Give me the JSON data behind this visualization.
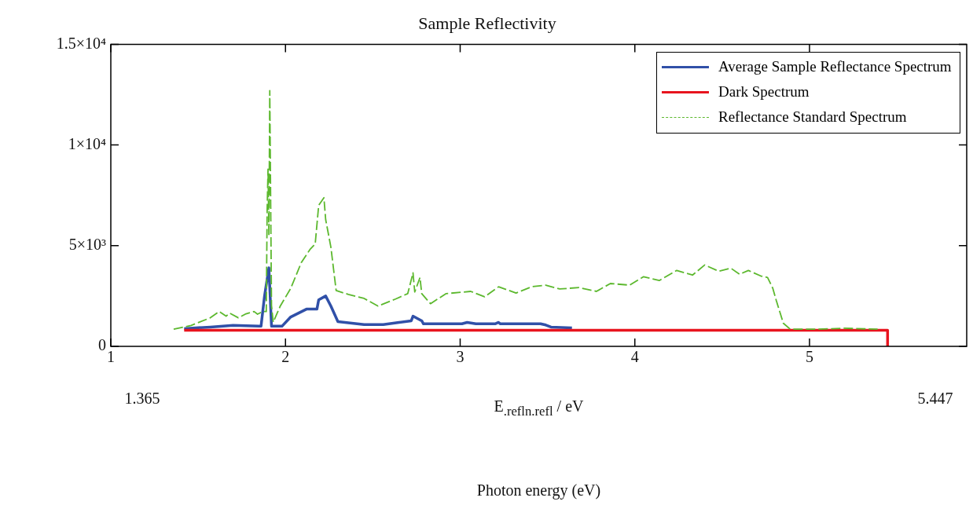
{
  "chart_data": {
    "type": "line",
    "title": "Sample Reflectivity",
    "xlabel": "E$_{.refl}$$_{n.refl}$ / eV",
    "xlim": [
      1,
      5.9
    ],
    "xticks": [
      1,
      2,
      3,
      4,
      5
    ],
    "ylim": [
      0,
      15000
    ],
    "yticks": [
      0,
      {
        "value": 5000,
        "label": "5×10³"
      },
      {
        "value": 10000,
        "label": "1×10⁴"
      },
      {
        "value": 15000,
        "label": "1.5×10⁴"
      }
    ],
    "grid": false,
    "legend": "top right",
    "marker": "none",
    "annotations": [
      "1.365",
      "5.447",
      "Photon energy (eV)"
    ],
    "series": [
      {
        "name": "Average Sample Reflectance Spectrum",
        "color": "#3050a8",
        "line_style": "solid",
        "x": [
          1.42,
          1.57,
          1.7,
          1.85,
          1.86,
          1.88,
          1.905,
          1.92,
          1.98,
          2.03,
          2.12,
          2.18,
          2.19,
          2.23,
          2.26,
          2.3,
          2.45,
          2.56,
          2.65,
          2.72,
          2.73,
          2.78,
          2.79,
          3.01,
          3.04,
          3.09,
          3.2,
          3.22,
          3.23,
          3.46,
          3.49,
          3.52,
          3.64
        ],
        "values": [
          880,
          960,
          1040,
          1000,
          1000,
          2500,
          3900,
          1000,
          1000,
          1460,
          1850,
          1850,
          2310,
          2500,
          2000,
          1230,
          1080,
          1080,
          1190,
          1270,
          1500,
          1270,
          1120,
          1120,
          1190,
          1120,
          1120,
          1190,
          1120,
          1120,
          1060,
          960,
          920
        ]
      },
      {
        "name": "Dark Spectrum",
        "color": "#e8141e",
        "line_style": "solid",
        "x": [
          1.42,
          5.447,
          5.447
        ],
        "values": [
          800,
          800,
          0
        ]
      },
      {
        "name": "Reflectance Standard Spectrum",
        "color": "#5cb82e",
        "line_style": "dashed",
        "x": [
          1.36,
          1.46,
          1.57,
          1.62,
          1.66,
          1.68,
          1.73,
          1.77,
          1.82,
          1.84,
          1.87,
          1.89,
          1.895,
          1.9,
          1.905,
          1.91,
          1.92,
          1.93,
          1.97,
          2.03,
          2.09,
          2.14,
          2.17,
          2.19,
          2.22,
          2.23,
          2.26,
          2.29,
          2.36,
          2.45,
          2.53,
          2.63,
          2.7,
          2.73,
          2.74,
          2.77,
          2.78,
          2.83,
          2.92,
          3.06,
          3.14,
          3.22,
          3.32,
          3.41,
          3.49,
          3.57,
          3.68,
          3.78,
          3.86,
          3.97,
          4.05,
          4.14,
          4.24,
          4.33,
          4.4,
          4.48,
          4.55,
          4.6,
          4.65,
          4.72,
          4.76,
          4.79,
          4.81,
          4.85,
          4.89,
          5.04,
          5.2,
          5.39
        ],
        "values": [
          850,
          1040,
          1420,
          1730,
          1500,
          1650,
          1420,
          1600,
          1730,
          1600,
          1730,
          1730,
          6800,
          8800,
          5500,
          12700,
          2000,
          1200,
          2000,
          2880,
          4150,
          4810,
          5080,
          7000,
          7380,
          6300,
          4920,
          2770,
          2580,
          2380,
          2000,
          2350,
          2620,
          3650,
          2700,
          3420,
          2620,
          2120,
          2620,
          2730,
          2460,
          2960,
          2650,
          2960,
          3040,
          2850,
          2920,
          2730,
          3120,
          3040,
          3460,
          3270,
          3770,
          3540,
          4040,
          3730,
          3880,
          3580,
          3770,
          3500,
          3420,
          2880,
          2270,
          1150,
          850,
          850,
          900,
          850
        ]
      }
    ]
  }
}
